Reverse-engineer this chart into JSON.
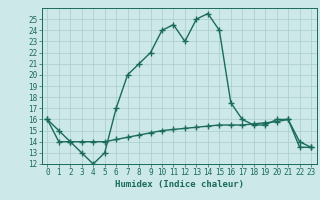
{
  "xlabel": "Humidex (Indice chaleur)",
  "x": [
    0,
    1,
    2,
    3,
    4,
    5,
    6,
    7,
    8,
    9,
    10,
    11,
    12,
    13,
    14,
    15,
    16,
    17,
    18,
    19,
    20,
    21,
    22,
    23
  ],
  "line1": [
    16,
    15,
    14,
    13,
    12,
    13,
    17,
    20,
    21,
    22,
    24,
    24.5,
    23,
    25,
    25.5,
    24,
    17.5,
    16,
    15.5,
    15.5,
    16,
    16,
    14,
    13.5
  ],
  "line2": [
    16,
    14,
    14,
    14,
    14,
    14,
    14.2,
    14.4,
    14.6,
    14.8,
    15.0,
    15.1,
    15.2,
    15.3,
    15.4,
    15.5,
    15.5,
    15.5,
    15.6,
    15.7,
    15.8,
    16.0,
    13.5,
    13.5
  ],
  "line_color": "#1a6b5a",
  "bg_color": "#cce8e8",
  "grid_color": "#aacccc",
  "ylim": [
    12,
    26
  ],
  "xlim": [
    -0.5,
    23.5
  ],
  "yticks": [
    12,
    13,
    14,
    15,
    16,
    17,
    18,
    19,
    20,
    21,
    22,
    23,
    24,
    25
  ],
  "xticks": [
    0,
    1,
    2,
    3,
    4,
    5,
    6,
    7,
    8,
    9,
    10,
    11,
    12,
    13,
    14,
    15,
    16,
    17,
    18,
    19,
    20,
    21,
    22,
    23
  ],
  "marker": "+",
  "linewidth": 1.0,
  "markersize": 4,
  "tick_fontsize": 5.5,
  "label_fontsize": 6.5
}
